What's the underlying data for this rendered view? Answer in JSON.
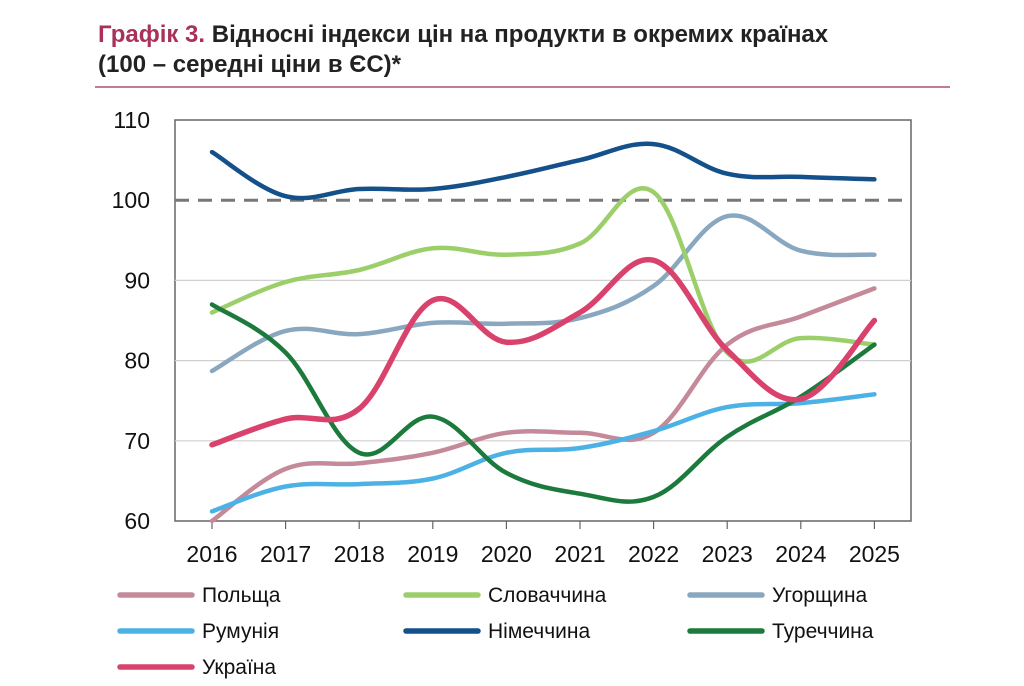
{
  "title_prefix": "Графік 3.",
  "title_main": "Відносні індекси цін на продукти в окремих країнах",
  "title_line2": "(100 – середні ціни в ЄС)*",
  "colors": {
    "Польща": "#c48a9a",
    "Словаччина": "#9ccf6a",
    "Угорщина": "#8aa7c0",
    "Румунія": "#4cb2e6",
    "Німеччина": "#14508a",
    "Туреччина": "#1c7a3c",
    "Україна": "#d9426c",
    "reference": "#777777"
  },
  "chart_data": {
    "type": "line",
    "categories": [
      "2016",
      "2017",
      "2018",
      "2019",
      "2020",
      "2021",
      "2022",
      "2023",
      "2024",
      "2025"
    ],
    "ylim": [
      60,
      110
    ],
    "yticks": [
      "60",
      "70",
      "80",
      "90",
      "100",
      "110"
    ],
    "reference_line": 100,
    "legend_placement": "bottom",
    "series": [
      {
        "name": "Польща",
        "values": [
          60,
          66.5,
          67.2,
          68.5,
          71,
          71,
          71,
          82,
          85.5,
          89
        ]
      },
      {
        "name": "Словаччина",
        "values": [
          86,
          89.8,
          91.3,
          94,
          93.2,
          94.6,
          101,
          81,
          82.8,
          82
        ]
      },
      {
        "name": "Угорщина",
        "values": [
          78.7,
          83.7,
          83.3,
          84.7,
          84.6,
          85.3,
          89.3,
          98,
          93.7,
          93.2
        ]
      },
      {
        "name": "Румунія",
        "values": [
          61.2,
          64.3,
          64.6,
          65.3,
          68.5,
          69.1,
          71.2,
          74.2,
          74.7,
          75.8
        ]
      },
      {
        "name": "Німеччина",
        "values": [
          106,
          100.5,
          101.4,
          101.4,
          102.9,
          105,
          107,
          103.3,
          102.9,
          102.6
        ]
      },
      {
        "name": "Туреччина",
        "values": [
          87,
          81,
          68.5,
          73,
          66,
          63.4,
          63,
          70.5,
          75.5,
          82
        ]
      },
      {
        "name": "Україна",
        "values": [
          69.5,
          72.7,
          74,
          87.5,
          82.3,
          86,
          92.5,
          81.3,
          75.2,
          85
        ]
      }
    ]
  },
  "legend": [
    "Польща",
    "Словаччина",
    "Угорщина",
    "Румунія",
    "Німеччина",
    "Туреччина",
    "Україна"
  ]
}
